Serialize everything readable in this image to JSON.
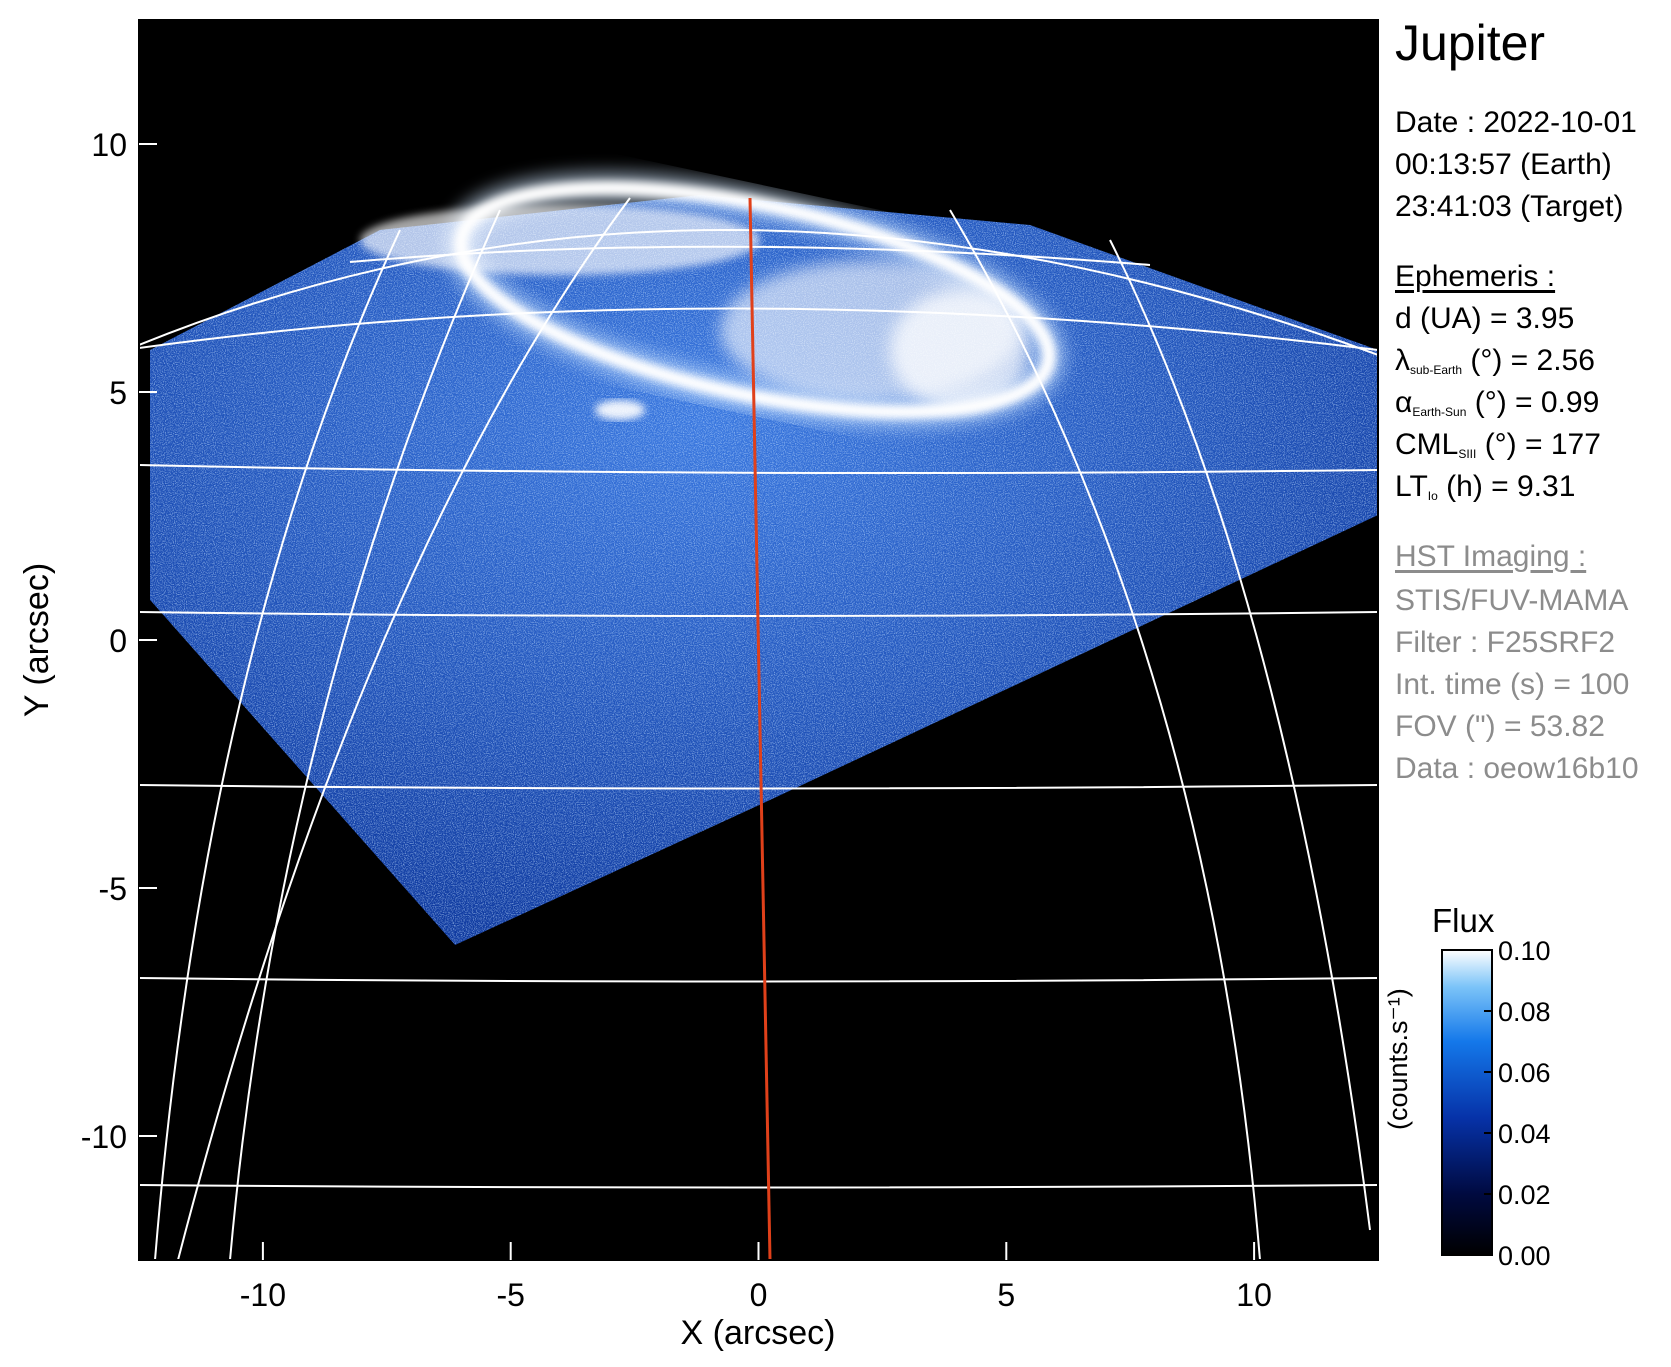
{
  "figure": {
    "planet": "Jupiter",
    "date_line": "Date : 2022-10-01",
    "time_earth": "00:13:57 (Earth)",
    "time_target": "23:41:03 (Target)"
  },
  "ephemeris": {
    "title": "Ephemeris :",
    "distance": "d (UA)    = 3.95",
    "lat_symbol": "λ",
    "lat_sub": "sub-Earth",
    "lat_rest": " (°) = 2.56",
    "phase_symbol": "α",
    "phase_sub": "Earth-Sun",
    "phase_rest": " (°) = 0.99",
    "cml_main": "CML",
    "cml_sub": "SIII",
    "cml_rest": " (°) = 177",
    "lt_main": "LT",
    "lt_sub": "Io",
    "lt_rest": " (h) = 9.31"
  },
  "instrument": {
    "title": "HST Imaging :",
    "detector": "STIS/FUV-MAMA",
    "filter": "Filter : F25SRF2",
    "int_time": "Int. time (s) = 100",
    "fov": "FOV (\") = 53.82",
    "dataset": "Data : oeow16b10"
  },
  "axes": {
    "xlabel": "X (arcsec)",
    "ylabel": "Y (arcsec)",
    "xlim": [
      -12.5,
      12.5
    ],
    "ylim": [
      -12.5,
      12.5
    ],
    "xticks": [
      "-10",
      "-5",
      "0",
      "5",
      "10"
    ],
    "yticks": [
      "10",
      "5",
      "0",
      "-5",
      "-10"
    ]
  },
  "colorbar": {
    "title": "Flux",
    "unit": "(counts.s⁻¹)",
    "ticks": [
      "0.10",
      "0.08",
      "0.06",
      "0.04",
      "0.02",
      "0.00"
    ],
    "range": [
      0.0,
      0.1
    ]
  },
  "colors": {
    "background": "#000000",
    "emission": "#1e5ad0",
    "emission_bright": "#ffffff",
    "grid": "#ffffff",
    "meridian": "#e0401a"
  }
}
